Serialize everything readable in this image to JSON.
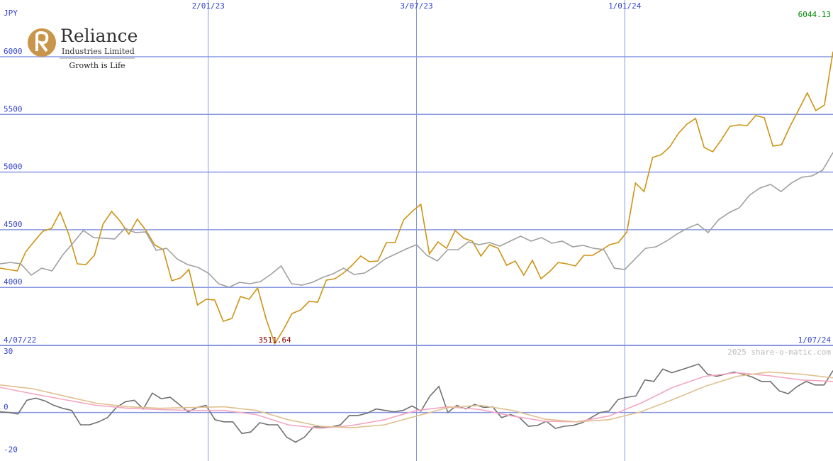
{
  "logo": {
    "name": "Reliance",
    "subtitle": "Industries Limited",
    "tagline": "Growth is Life"
  },
  "watermark": "2025 share-o-matic.com",
  "chart_data": [
    {
      "type": "line",
      "y_unit": "JPY",
      "xlim": [
        {
          "value": "2022-07-04",
          "label": "4/07/22"
        },
        {
          "value": "2024-07-01",
          "label": "1/07/24"
        }
      ],
      "xticks": [
        {
          "value": "2023-01-02",
          "label": "2/01/23"
        },
        {
          "value": "2023-07-03",
          "label": "3/07/23"
        },
        {
          "value": "2024-01-01",
          "label": "1/01/24"
        }
      ],
      "ylim": [
        3497,
        6492
      ],
      "yticks": [
        4000,
        4500,
        5000,
        5500,
        6000
      ],
      "grid": true,
      "max_label": 6044.13,
      "min_label": 3511.64,
      "series": [
        {
          "color": "#cc9414",
          "values": [
            4167,
            4155,
            4143,
            4309,
            4401,
            4487,
            4512,
            4653,
            4462,
            4204,
            4198,
            4278,
            4549,
            4659,
            4573,
            4462,
            4592,
            4493,
            4370,
            4327,
            4057,
            4081,
            4155,
            3847,
            3897,
            3891,
            3706,
            3731,
            3921,
            3897,
            3995,
            3724,
            3511.64,
            3632,
            3774,
            3804,
            3878,
            3872,
            4063,
            4075,
            4124,
            4192,
            4272,
            4223,
            4229,
            4389,
            4389,
            4585,
            4659,
            4721,
            4290,
            4395,
            4339,
            4493,
            4426,
            4401,
            4272,
            4370,
            4339,
            4192,
            4229,
            4106,
            4235,
            4075,
            4137,
            4216,
            4204,
            4186,
            4278,
            4278,
            4321,
            4370,
            4389,
            4481,
            4905,
            4831,
            5127,
            5151,
            5219,
            5336,
            5416,
            5465,
            5213,
            5176,
            5280,
            5397,
            5409,
            5403,
            5490,
            5471,
            5225,
            5237,
            5397,
            5539,
            5686,
            5533,
            5582,
            6044.13
          ]
        },
        {
          "color": "#a0a0a0",
          "values": [
            4204,
            4216,
            4204,
            4106,
            4167,
            4143,
            4278,
            4383,
            4493,
            4432,
            4426,
            4420,
            4512,
            4475,
            4481,
            4321,
            4339,
            4247,
            4198,
            4174,
            4124,
            4032,
            4001,
            4044,
            4032,
            4050,
            4112,
            4186,
            4032,
            4020,
            4044,
            4087,
            4118,
            4167,
            4112,
            4124,
            4179,
            4247,
            4290,
            4333,
            4370,
            4278,
            4229,
            4327,
            4327,
            4395,
            4370,
            4389,
            4358,
            4401,
            4444,
            4401,
            4432,
            4383,
            4401,
            4352,
            4364,
            4339,
            4327,
            4167,
            4155,
            4247,
            4339,
            4352,
            4401,
            4462,
            4512,
            4549,
            4475,
            4585,
            4647,
            4690,
            4801,
            4862,
            4893,
            4831,
            4905,
            4955,
            4967,
            5016,
            5170
          ]
        }
      ]
    },
    {
      "type": "line",
      "ylim": [
        -22.9,
        31.7
      ],
      "yticks": [
        -20,
        0,
        30
      ],
      "grid_values": [
        0
      ],
      "series": [
        {
          "color": "#707070",
          "values": [
            0.3,
            0,
            -0.7,
            5.8,
            6.8,
            5.5,
            3.4,
            2,
            1,
            -5.8,
            -5.8,
            -4.4,
            -2.4,
            2.4,
            5.1,
            5.8,
            1.7,
            9.2,
            6.5,
            7.2,
            3.8,
            0.3,
            2.4,
            3.4,
            -3.4,
            -4.4,
            -4.4,
            -9.9,
            -9.2,
            -4.8,
            -5.8,
            -5.8,
            -11.6,
            -14,
            -11.6,
            -6.8,
            -6.8,
            -6.8,
            -5.8,
            -1.4,
            -1.4,
            -0.3,
            1.7,
            1,
            0.3,
            1,
            3.1,
            0.7,
            7.8,
            12.3,
            0,
            3.4,
            1.7,
            3.8,
            2.4,
            2.7,
            -2.4,
            -1,
            -2.4,
            -6.5,
            -6.1,
            -4.1,
            -7.5,
            -6.5,
            -6.1,
            -4.8,
            -2.4,
            0,
            0.7,
            6.1,
            7.2,
            7.8,
            15.4,
            14.7,
            20.5,
            18.8,
            20.1,
            21.5,
            22.9,
            18.1,
            17.1,
            18.1,
            19.1,
            18.1,
            16.7,
            14.7,
            14.7,
            10.2,
            8.9,
            12.3,
            14.7,
            13,
            13,
            19.8
          ]
        },
        {
          "color": "#f4a6c0",
          "values": [
            11.9,
            8.9,
            6.1,
            3.4,
            2,
            1.4,
            1,
            1,
            -1,
            -5.8,
            -7.5,
            -6.1,
            -3.4,
            1,
            2.7,
            1.4,
            -1.7,
            -4.1,
            -4.4,
            -1.7,
            4.4,
            11.9,
            17.1,
            18.8,
            17.4,
            15.4,
            14.7
          ]
        },
        {
          "color": "#e0c090",
          "values": [
            13,
            11.3,
            7.8,
            4.4,
            2.7,
            2,
            2.4,
            2.7,
            1,
            -3.4,
            -6.5,
            -7.2,
            -5.8,
            -1.7,
            2.4,
            3.4,
            1,
            -3.1,
            -4.4,
            -3.4,
            0.3,
            6.1,
            12.3,
            17.1,
            19.1,
            18.1,
            16.4
          ]
        }
      ]
    }
  ]
}
